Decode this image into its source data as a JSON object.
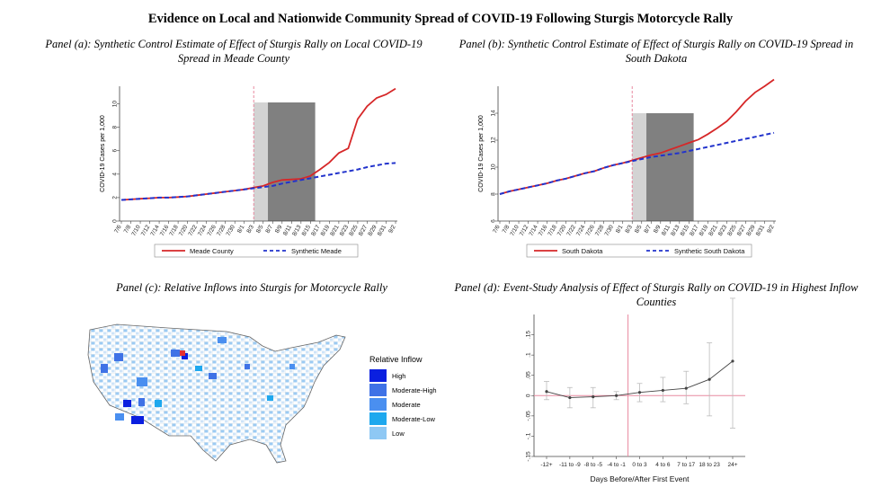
{
  "title": "Evidence on Local and Nationwide Community Spread of COVID-19 Following Sturgis Motorcycle Rally",
  "colors": {
    "treated": "#d62728",
    "synthetic": "#2233cc",
    "shade_light": "#d3d3d3",
    "shade_dark": "#808080",
    "event_line": "#e88aa0",
    "ci": "#bbbbbb",
    "point": "#444444"
  },
  "chart_data": [
    {
      "type": "line",
      "title": "Panel (a): Synthetic Control Estimate of Effect of Sturgis Rally on Local COVID-19 Spread in Meade County",
      "ylabel": "COVID-19 Cases per 1,000",
      "xlabel": "",
      "ylim": [
        0,
        11.5
      ],
      "yticks": [
        0,
        2,
        4,
        6,
        8,
        10
      ],
      "x": [
        "7/6",
        "7/8",
        "7/10",
        "7/12",
        "7/14",
        "7/16",
        "7/18",
        "7/20",
        "7/22",
        "7/24",
        "7/26",
        "7/28",
        "7/30",
        "8/1",
        "8/3",
        "8/5",
        "8/7",
        "8/9",
        "8/11",
        "8/13",
        "8/15",
        "8/17",
        "8/19",
        "8/21",
        "8/23",
        "8/25",
        "8/27",
        "8/29",
        "8/31",
        "9/2"
      ],
      "series": [
        {
          "name": "Meade County",
          "style": "solid",
          "values": [
            1.8,
            1.85,
            1.9,
            1.95,
            2.0,
            2.0,
            2.05,
            2.1,
            2.2,
            2.3,
            2.4,
            2.5,
            2.6,
            2.7,
            2.85,
            3.0,
            3.3,
            3.5,
            3.55,
            3.6,
            3.85,
            4.4,
            5.0,
            5.8,
            6.2,
            8.7,
            9.8,
            10.5,
            10.8,
            11.3
          ]
        },
        {
          "name": "Synthetic Meade",
          "style": "dashed",
          "values": [
            1.8,
            1.85,
            1.9,
            1.95,
            2.0,
            2.0,
            2.05,
            2.1,
            2.2,
            2.3,
            2.4,
            2.5,
            2.6,
            2.7,
            2.8,
            2.9,
            3.0,
            3.2,
            3.35,
            3.5,
            3.65,
            3.8,
            3.95,
            4.1,
            4.25,
            4.4,
            4.6,
            4.75,
            4.9,
            4.95
          ]
        }
      ],
      "event_line_x": "8/3",
      "shaded_regions": [
        {
          "from": "8/3",
          "to": "8/6",
          "shade": "light"
        },
        {
          "from": "8/6",
          "to": "8/16",
          "shade": "dark"
        }
      ],
      "legend": "bottom"
    },
    {
      "type": "line",
      "title": "Panel (b): Synthetic Control Estimate of Effect of Sturgis Rally on COVID-19 Spread in South Dakota",
      "ylabel": "COVID-19 Cases per 1,000",
      "xlabel": "",
      "ylim": [
        6,
        16
      ],
      "yticks": [
        6,
        8,
        10,
        12,
        14
      ],
      "x": [
        "7/6",
        "7/8",
        "7/10",
        "7/12",
        "7/14",
        "7/16",
        "7/18",
        "7/20",
        "7/22",
        "7/24",
        "7/26",
        "7/28",
        "7/30",
        "8/1",
        "8/3",
        "8/5",
        "8/7",
        "8/9",
        "8/11",
        "8/13",
        "8/15",
        "8/17",
        "8/19",
        "8/21",
        "8/23",
        "8/25",
        "8/27",
        "8/29",
        "8/31",
        "9/2"
      ],
      "series": [
        {
          "name": "South Dakota",
          "style": "solid",
          "values": [
            8.0,
            8.2,
            8.35,
            8.5,
            8.65,
            8.8,
            9.0,
            9.15,
            9.35,
            9.55,
            9.7,
            9.95,
            10.15,
            10.3,
            10.5,
            10.7,
            10.9,
            11.05,
            11.3,
            11.55,
            11.8,
            12.05,
            12.45,
            12.9,
            13.4,
            14.1,
            14.9,
            15.55,
            16.0,
            16.5
          ]
        },
        {
          "name": "Synthetic South Dakota",
          "style": "dashed",
          "values": [
            8.0,
            8.2,
            8.35,
            8.5,
            8.65,
            8.8,
            9.0,
            9.15,
            9.35,
            9.55,
            9.7,
            9.95,
            10.15,
            10.3,
            10.45,
            10.6,
            10.75,
            10.85,
            10.95,
            11.05,
            11.2,
            11.35,
            11.5,
            11.65,
            11.8,
            11.95,
            12.1,
            12.25,
            12.4,
            12.55
          ]
        }
      ],
      "event_line_x": "8/3",
      "shaded_regions": [
        {
          "from": "8/3",
          "to": "8/6",
          "shade": "light"
        },
        {
          "from": "8/6",
          "to": "8/16",
          "shade": "dark"
        }
      ],
      "legend": "bottom"
    },
    {
      "type": "scatter",
      "title": "Panel (d): Event-Study Analysis of Effect of Sturgis Rally on COVID-19 in Highest Inflow Counties",
      "xlabel": "Days Before/After First Event",
      "ylabel": "",
      "ylim": [
        -0.15,
        0.2
      ],
      "yticks": [
        -0.15,
        -0.1,
        -0.05,
        0,
        0.05,
        0.1,
        0.15
      ],
      "ytick_labels": [
        "-.15",
        "-.1",
        "-.05",
        "0",
        ".05",
        ".1",
        ".15"
      ],
      "categories": [
        "-12+",
        "-11 to -9",
        "-8 to -5",
        "-4 to -1",
        "0 to 3",
        "4 to 6",
        "7 to 17",
        "18 to 23",
        "24+"
      ],
      "values": [
        0.01,
        -0.005,
        -0.003,
        0.0,
        0.008,
        0.013,
        0.018,
        0.04,
        0.085
      ],
      "ci_low": [
        -0.01,
        -0.03,
        -0.03,
        -0.01,
        -0.015,
        -0.015,
        -0.02,
        -0.05,
        -0.08
      ],
      "ci_high": [
        0.035,
        0.02,
        0.02,
        0.01,
        0.03,
        0.045,
        0.06,
        0.13,
        0.24
      ],
      "reference_line_y": 0,
      "event_line_between": [
        "-4 to -1",
        "0 to 3"
      ]
    }
  ],
  "panel_c": {
    "title": "Panel (c): Relative Inflows into Sturgis for Motorcycle Rally",
    "legend_title": "Relative Inflow",
    "legend": [
      {
        "label": "High",
        "color": "#0a1fe0"
      },
      {
        "label": "Moderate-High",
        "color": "#3f72e6"
      },
      {
        "label": "Moderate",
        "color": "#4a8ff0"
      },
      {
        "label": "Moderate-Low",
        "color": "#1ea8ee"
      },
      {
        "label": "Low",
        "color": "#8ec8f4"
      }
    ]
  }
}
